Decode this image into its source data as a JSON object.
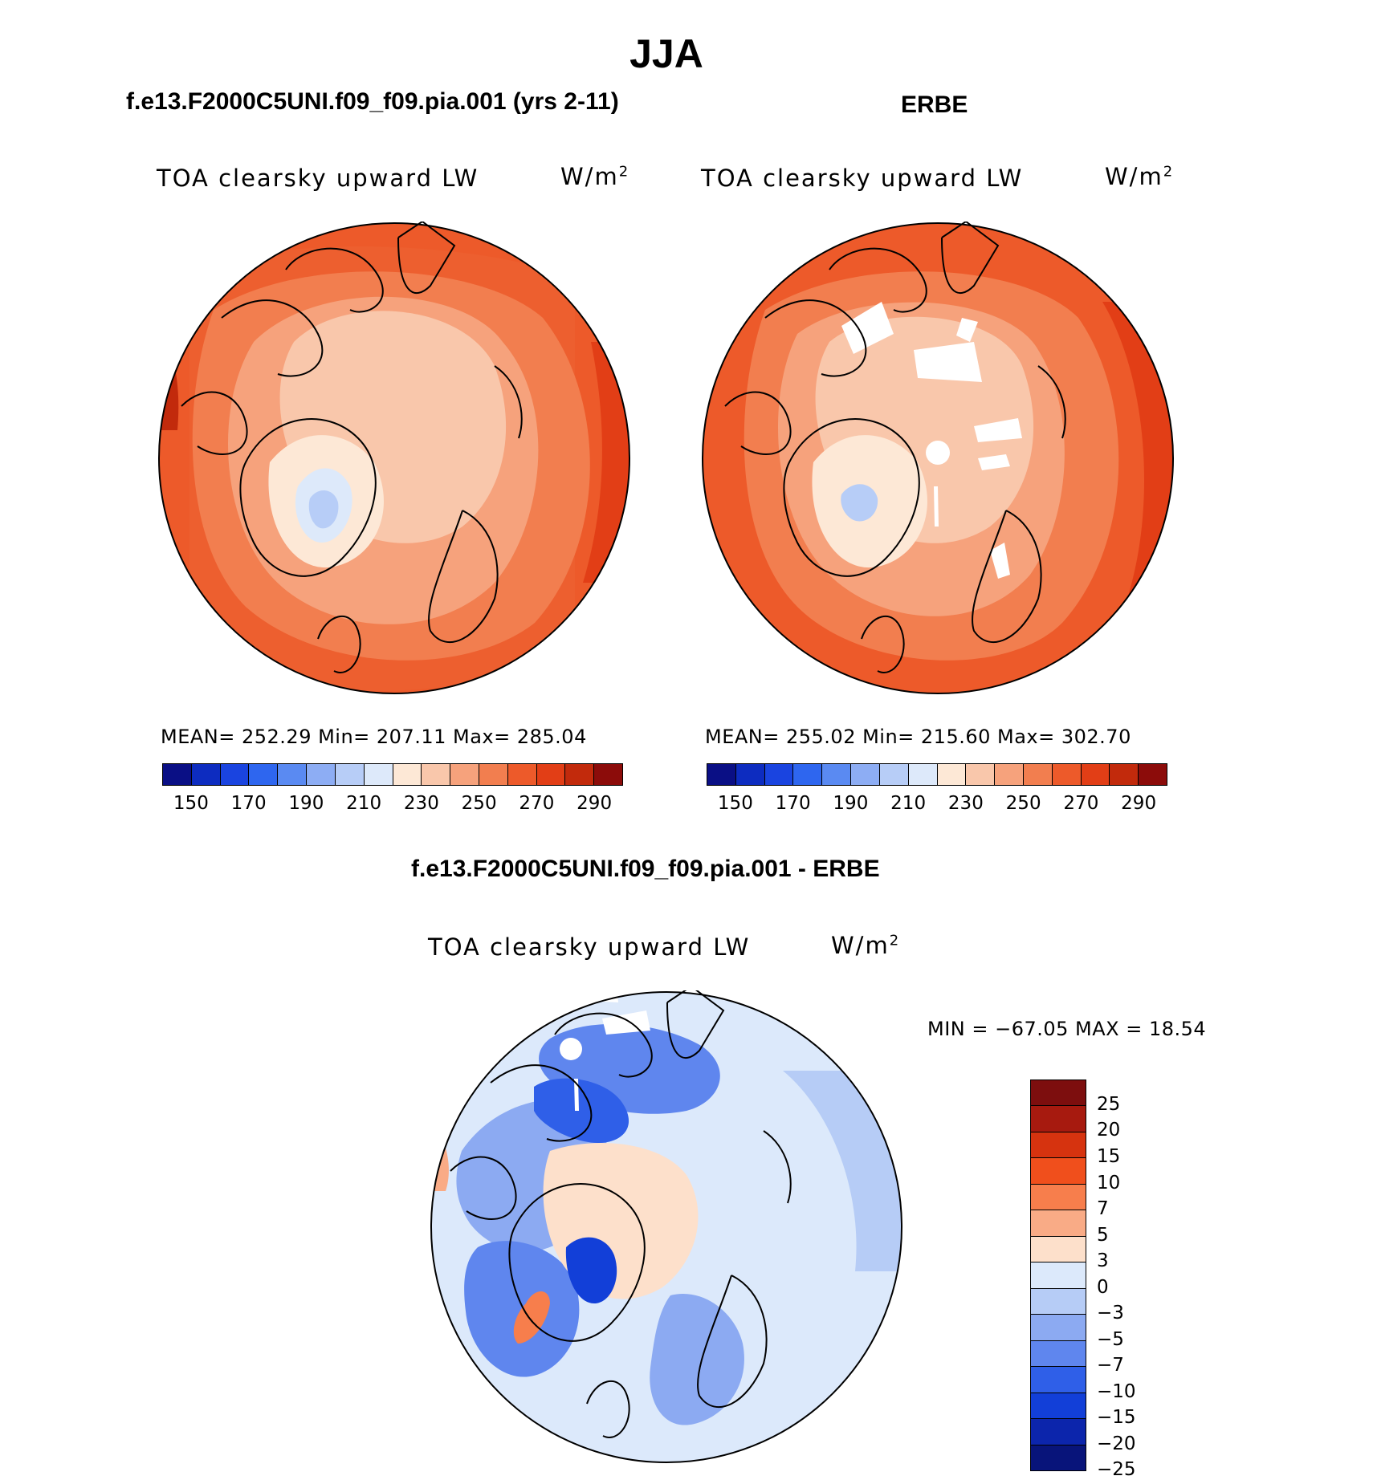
{
  "page_title": "JJA",
  "panels": [
    {
      "title": "f.e13.F2000C5UNI.f09_f09.pia.001 (yrs 2-11)",
      "var_label": "TOA clearsky upward LW",
      "units_base": "W/m",
      "units_exp": "2",
      "stats": "MEAN= 252.29   Min= 207.11   Max= 285.04",
      "colorbar_colors": [
        "#0a0f85",
        "#0d2cc0",
        "#1a44e0",
        "#2e66ef",
        "#5a8af2",
        "#8dadf4",
        "#b7cdf7",
        "#dde9fa",
        "#fde8d6",
        "#f9c7ab",
        "#f6a27c",
        "#f27e4f",
        "#ed5a2a",
        "#e23e16",
        "#c22a0c",
        "#8c0c0a"
      ],
      "ticks": [
        "150",
        "170",
        "190",
        "210",
        "230",
        "250",
        "270",
        "290"
      ]
    },
    {
      "title": "ERBE",
      "var_label": "TOA clearsky upward LW",
      "units_base": "W/m",
      "units_exp": "2",
      "stats": "MEAN= 255.02   Min= 215.60   Max= 302.70",
      "colorbar_colors": [
        "#0a0f85",
        "#0d2cc0",
        "#1a44e0",
        "#2e66ef",
        "#5a8af2",
        "#8dadf4",
        "#b7cdf7",
        "#dde9fa",
        "#fde8d6",
        "#f9c7ab",
        "#f6a27c",
        "#f27e4f",
        "#ed5a2a",
        "#e23e16",
        "#c22a0c",
        "#8c0c0a"
      ],
      "ticks": [
        "150",
        "170",
        "190",
        "210",
        "230",
        "250",
        "270",
        "290"
      ]
    }
  ],
  "diff_panel": {
    "title": "f.e13.F2000C5UNI.f09_f09.pia.001 - ERBE",
    "var_label": "TOA clearsky upward LW",
    "units_base": "W/m",
    "units_exp": "2",
    "stats": "MIN = −67.05 MAX =   18.54",
    "colorbar_colors": [
      "#7d0e0e",
      "#a71a0f",
      "#d6330f",
      "#f04f1c",
      "#f77e4c",
      "#f9ab86",
      "#fde0cb",
      "#dce9fb",
      "#b6ccf6",
      "#8caaf2",
      "#5f86ee",
      "#2f5fe8",
      "#123fd8",
      "#0c25ac",
      "#08147a"
    ],
    "ticks": [
      "25",
      "20",
      "15",
      "10",
      "7",
      "5",
      "3",
      "0",
      "−3",
      "−5",
      "−7",
      "−10",
      "−15",
      "−20",
      "−25"
    ]
  }
}
